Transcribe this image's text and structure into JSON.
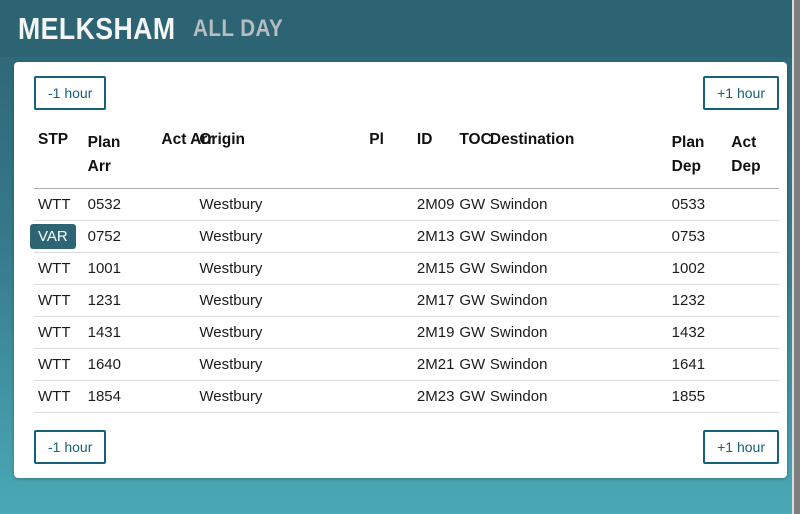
{
  "header": {
    "station": "MELKSHAM",
    "mode": "ALL DAY"
  },
  "controls": {
    "prev_label": "-1 hour",
    "next_label": "+1 hour"
  },
  "table": {
    "columns": [
      {
        "key": "stp",
        "label": "STP",
        "wrap": false
      },
      {
        "key": "plan_arr",
        "label": "Plan Arr",
        "wrap": true
      },
      {
        "key": "act_arr",
        "label": "Act Arr",
        "wrap": false
      },
      {
        "key": "origin",
        "label": "Origin",
        "wrap": false
      },
      {
        "key": "pl",
        "label": "Pl",
        "wrap": false
      },
      {
        "key": "id",
        "label": "ID",
        "wrap": false
      },
      {
        "key": "toc",
        "label": "TOC",
        "wrap": false
      },
      {
        "key": "destination",
        "label": "Destination",
        "wrap": false
      },
      {
        "key": "plan_dep",
        "label": "Plan Dep",
        "wrap": true
      },
      {
        "key": "act_dep",
        "label": "Act Dep",
        "wrap": true
      }
    ],
    "rows": [
      {
        "stp": "WTT",
        "plan_arr": "0532",
        "act_arr": "",
        "origin": "Westbury",
        "pl": "",
        "id": "2M09",
        "toc": "GW",
        "destination": "Swindon",
        "plan_dep": "0533",
        "act_dep": ""
      },
      {
        "stp": "VAR",
        "plan_arr": "0752",
        "act_arr": "",
        "origin": "Westbury",
        "pl": "",
        "id": "2M13",
        "toc": "GW",
        "destination": "Swindon",
        "plan_dep": "0753",
        "act_dep": ""
      },
      {
        "stp": "WTT",
        "plan_arr": "1001",
        "act_arr": "",
        "origin": "Westbury",
        "pl": "",
        "id": "2M15",
        "toc": "GW",
        "destination": "Swindon",
        "plan_dep": "1002",
        "act_dep": ""
      },
      {
        "stp": "WTT",
        "plan_arr": "1231",
        "act_arr": "",
        "origin": "Westbury",
        "pl": "",
        "id": "2M17",
        "toc": "GW",
        "destination": "Swindon",
        "plan_dep": "1232",
        "act_dep": ""
      },
      {
        "stp": "WTT",
        "plan_arr": "1431",
        "act_arr": "",
        "origin": "Westbury",
        "pl": "",
        "id": "2M19",
        "toc": "GW",
        "destination": "Swindon",
        "plan_dep": "1432",
        "act_dep": ""
      },
      {
        "stp": "WTT",
        "plan_arr": "1640",
        "act_arr": "",
        "origin": "Westbury",
        "pl": "",
        "id": "2M21",
        "toc": "GW",
        "destination": "Swindon",
        "plan_dep": "1641",
        "act_dep": ""
      },
      {
        "stp": "WTT",
        "plan_arr": "1854",
        "act_arr": "",
        "origin": "Westbury",
        "pl": "",
        "id": "2M23",
        "toc": "GW",
        "destination": "Swindon",
        "plan_dep": "1855",
        "act_dep": ""
      }
    ],
    "highlighted_stp_value": "VAR"
  },
  "colors": {
    "header_teal": "#2d6474",
    "page_teal_bottom": "#4aa9b6",
    "accent_teal": "#16607b",
    "badge_teal": "#2d6575",
    "mode_text_gray": "#b6bcbf",
    "scrollbar_gray": "#7f7f7f"
  }
}
